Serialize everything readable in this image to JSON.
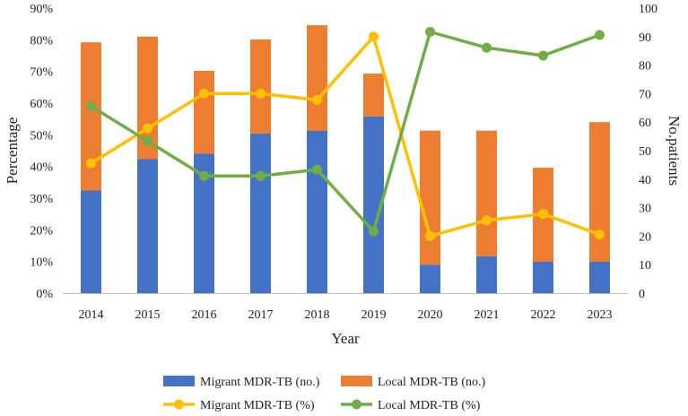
{
  "chart_data": {
    "type": "bar",
    "stacked": true,
    "categories": [
      "2014",
      "2015",
      "2016",
      "2017",
      "2018",
      "2019",
      "2020",
      "2021",
      "2022",
      "2023"
    ],
    "xlabel": "Year",
    "ylabel_left": "Percentage",
    "ylabel_right": "No.patients",
    "ylim_left": [
      0,
      0.9
    ],
    "ylim_right": [
      0,
      100
    ],
    "yticks_left": [
      "0%",
      "10%",
      "20%",
      "30%",
      "40%",
      "50%",
      "60%",
      "70%",
      "80%",
      "90%"
    ],
    "yticks_right": [
      "0",
      "10",
      "20",
      "30",
      "40",
      "50",
      "60",
      "70",
      "80",
      "90",
      "100"
    ],
    "grid": false,
    "legend_position": "bottom",
    "bar_series": [
      {
        "name": "Migrant MDR-TB (no.)",
        "color": "#4472C4",
        "axis": "right",
        "values": [
          36,
          47,
          49,
          56,
          57,
          62,
          10,
          13,
          11,
          11
        ]
      },
      {
        "name": "Local MDR-TB (no.)",
        "color": "#ED7D31",
        "axis": "right",
        "values": [
          52,
          43,
          29,
          33,
          37,
          15,
          47,
          44,
          33,
          49
        ]
      }
    ],
    "line_series": [
      {
        "name": "Migrant MDR-TB (%)",
        "color": "#FFC000",
        "axis": "left",
        "values": [
          0.41,
          0.52,
          0.63,
          0.63,
          0.61,
          0.81,
          0.18,
          0.23,
          0.25,
          0.185
        ]
      },
      {
        "name": "Local MDR-TB (%)",
        "color": "#70AD47",
        "axis": "left",
        "values": [
          0.59,
          0.48,
          0.37,
          0.37,
          0.39,
          0.195,
          0.825,
          0.775,
          0.75,
          0.815
        ]
      }
    ]
  }
}
